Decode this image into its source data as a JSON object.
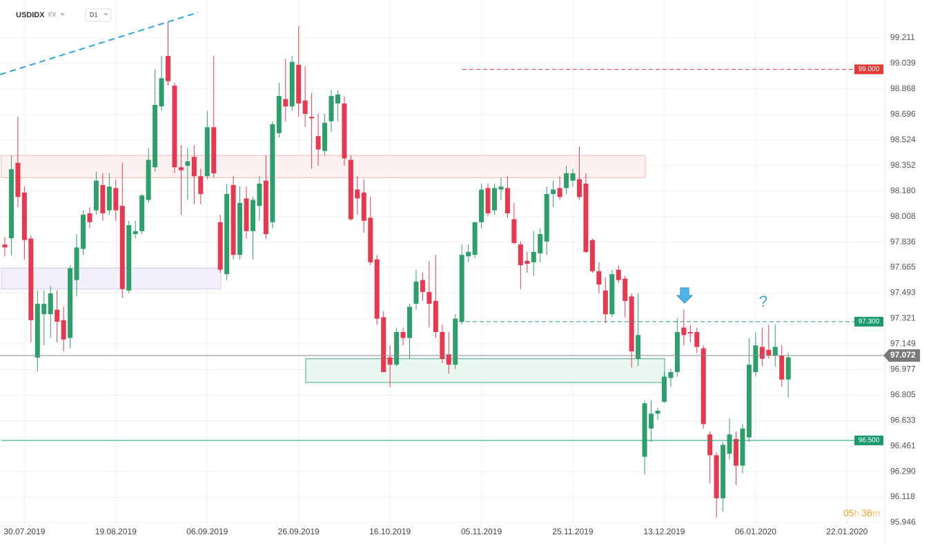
{
  "chart_data": {
    "type": "candlestick",
    "symbol": "USDIDX",
    "market": "FX",
    "interval": "D1",
    "countdown": [
      "05",
      "h",
      "36",
      "m"
    ],
    "annotation": "?",
    "up_color": "#2e9e6b",
    "down_color": "#e8384f",
    "grid": true,
    "categories": [
      null,
      null,
      null,
      "30.07.2019",
      null,
      null,
      null,
      null,
      null,
      null,
      null,
      null,
      null,
      null,
      null,
      null,
      null,
      "19.08.2019",
      null,
      null,
      null,
      null,
      null,
      null,
      null,
      null,
      null,
      null,
      null,
      null,
      null,
      "06.09.2019",
      null,
      null,
      null,
      null,
      null,
      null,
      null,
      null,
      null,
      null,
      null,
      null,
      null,
      "26.09.2019",
      null,
      null,
      null,
      null,
      null,
      null,
      null,
      null,
      null,
      null,
      null,
      null,
      null,
      "16.10.2019",
      null,
      null,
      null,
      null,
      null,
      null,
      null,
      null,
      null,
      null,
      null,
      null,
      null,
      "05.11.2019",
      null,
      null,
      null,
      null,
      null,
      null,
      null,
      null,
      null,
      null,
      null,
      null,
      null,
      "25.11.2019",
      null,
      null,
      null,
      null,
      null,
      null,
      null,
      null,
      null,
      null,
      null,
      null,
      null,
      "13.12.2019",
      null,
      null,
      null,
      null,
      null,
      null,
      null,
      null,
      null,
      null,
      null,
      null,
      null,
      "06.01.2020",
      null,
      null,
      null,
      null,
      null,
      null,
      null,
      null,
      null,
      null,
      null,
      null,
      null,
      "22.01.2020",
      null,
      null,
      null,
      null,
      null
    ],
    "open": [
      97.82,
      97.862,
      98.37,
      98.17,
      97.86,
      97.058,
      97.35,
      97.35,
      97.38,
      97.31,
      97.19,
      97.58,
      97.79,
      98.03,
      98.05,
      98.22,
      98.05,
      98.2,
      98.08,
      97.51,
      97.89,
      97.91,
      98.12,
      98.34,
      98.75,
      99.09,
      98.89,
      98.34,
      98.35,
      98.41,
      98.28,
      98.28,
      98.61,
      97.97,
      97.62,
      98.22,
      97.75,
      98.13,
      97.91,
      98.08,
      98.25,
      97.97,
      98.57,
      98.8,
      98.75,
      99.03,
      98.79,
      98.68,
      98.55,
      98.45,
      98.65,
      98.77,
      98.77,
      98.39,
      98.19,
      98.17,
      98.0,
      97.72,
      97.33,
      97.06,
      97.01,
      97.23,
      97.19,
      97.42,
      97.58,
      97.5,
      97.44,
      97.23,
      97.08,
      97.01,
      97.3,
      97.74,
      97.75,
      97.97,
      98.2,
      98.05,
      98.19,
      98.2,
      97.99,
      97.82,
      97.71,
      97.7,
      97.76,
      97.84,
      98.16,
      98.2,
      98.2,
      98.25,
      98.26,
      98.23,
      97.85,
      97.64,
      97.51,
      97.35,
      97.65,
      97.59,
      97.47,
      97.05,
      96.39,
      96.58,
      96.68,
      96.76,
      96.92,
      96.96,
      97.26,
      97.23,
      97.23,
      97.12,
      96.54,
      96.4,
      96.11,
      96.41,
      96.51,
      96.33,
      96.52,
      96.96,
      97.13,
      97.11,
      97.07,
      97.07,
      96.91,
      null,
      null,
      null,
      null,
      null,
      null,
      null,
      null,
      null,
      null,
      null,
      null,
      null,
      null
    ],
    "high": [
      97.87,
      98.42,
      98.68,
      98.21,
      97.88,
      97.51,
      97.51,
      97.54,
      97.51,
      97.4,
      97.68,
      97.89,
      98.05,
      98.07,
      98.31,
      98.3,
      98.3,
      98.26,
      98.37,
      97.98,
      97.98,
      98.16,
      98.47,
      99.0,
      99.09,
      99.32,
      98.91,
      98.49,
      98.47,
      98.49,
      98.33,
      98.72,
      99.09,
      98.02,
      98.23,
      98.28,
      98.21,
      98.21,
      98.14,
      98.28,
      98.42,
      98.65,
      98.91,
      99.07,
      99.09,
      99.29,
      99.02,
      98.84,
      98.7,
      98.7,
      98.86,
      98.86,
      98.82,
      98.42,
      98.28,
      98.26,
      98.14,
      97.75,
      97.37,
      97.14,
      97.26,
      97.26,
      97.42,
      97.65,
      97.63,
      97.71,
      97.75,
      97.28,
      97.23,
      97.35,
      97.82,
      97.82,
      97.97,
      98.23,
      98.23,
      98.23,
      98.27,
      98.28,
      98.1,
      97.84,
      97.77,
      97.91,
      97.93,
      98.21,
      98.25,
      98.28,
      98.35,
      98.33,
      98.48,
      98.3,
      97.86,
      97.7,
      97.6,
      97.65,
      97.68,
      97.61,
      97.49,
      97.49,
      96.77,
      96.77,
      96.72,
      96.96,
      96.98,
      97.32,
      97.38,
      97.28,
      97.26,
      97.14,
      96.56,
      96.42,
      96.49,
      96.65,
      96.56,
      96.61,
      97.19,
      97.23,
      97.26,
      97.28,
      97.28,
      97.14,
      97.09,
      null,
      null,
      null,
      null,
      null,
      null,
      null,
      null,
      null,
      null,
      null,
      null,
      null,
      null
    ],
    "low": [
      97.74,
      97.746,
      98.07,
      97.72,
      97.16,
      96.965,
      97.14,
      97.19,
      97.16,
      97.1,
      97.12,
      97.47,
      97.75,
      97.93,
      98.02,
      97.98,
      98.02,
      97.98,
      97.46,
      97.49,
      97.86,
      97.89,
      98.1,
      98.31,
      98.72,
      98.89,
      98.3,
      98.02,
      98.12,
      98.09,
      98.09,
      98.26,
      98.27,
      97.63,
      97.58,
      97.72,
      97.72,
      97.86,
      97.72,
      97.98,
      97.86,
      97.93,
      98.54,
      98.65,
      98.72,
      98.68,
      98.61,
      98.33,
      98.35,
      98.42,
      98.58,
      98.65,
      98.35,
      97.98,
      98.02,
      97.9,
      97.68,
      97.28,
      96.96,
      96.86,
      97.0,
      97.14,
      97.05,
      97.38,
      97.44,
      97.26,
      97.19,
      97.02,
      96.95,
      96.98,
      97.28,
      97.7,
      97.73,
      97.93,
      98.01,
      98.02,
      98.12,
      98.0,
      97.82,
      97.52,
      97.63,
      97.61,
      97.7,
      97.75,
      98.07,
      98.12,
      98.16,
      98.21,
      98.12,
      97.76,
      97.63,
      97.49,
      97.29,
      97.33,
      97.56,
      97.33,
      96.99,
      97.0,
      96.27,
      96.49,
      96.64,
      96.75,
      96.86,
      96.93,
      97.14,
      97.16,
      97.09,
      96.58,
      96.21,
      95.98,
      96.02,
      96.37,
      96.2,
      96.28,
      96.49,
      96.93,
      97.0,
      97.05,
      97.0,
      96.86,
      96.79,
      null,
      null,
      null,
      null,
      null,
      null,
      null,
      null,
      null,
      null,
      null,
      null,
      null,
      null
    ],
    "close": [
      97.8,
      98.327,
      98.14,
      97.85,
      97.31,
      97.42,
      97.42,
      97.49,
      97.3,
      97.18,
      97.66,
      97.8,
      98.02,
      97.97,
      98.25,
      98.03,
      98.21,
      98.05,
      97.52,
      97.95,
      97.91,
      98.15,
      98.39,
      98.76,
      98.94,
      98.92,
      98.34,
      98.32,
      98.38,
      98.28,
      98.16,
      98.61,
      98.3,
      97.65,
      98.16,
      97.75,
      98.1,
      97.91,
      98.12,
      98.23,
      97.89,
      98.63,
      98.82,
      98.75,
      99.05,
      98.77,
      98.7,
      98.67,
      98.46,
      98.64,
      98.82,
      98.83,
      98.4,
      97.99,
      98.13,
      97.98,
      97.7,
      97.32,
      96.96,
      97.01,
      97.23,
      97.19,
      97.4,
      97.57,
      97.5,
      97.42,
      97.23,
      97.05,
      97.01,
      97.32,
      97.75,
      97.77,
      97.97,
      98.19,
      98.03,
      98.2,
      98.21,
      98.03,
      97.83,
      97.68,
      97.69,
      97.77,
      97.89,
      98.16,
      98.19,
      98.14,
      98.3,
      98.3,
      98.14,
      97.77,
      97.64,
      97.55,
      97.35,
      97.62,
      97.58,
      97.44,
      97.1,
      97.21,
      96.75,
      96.68,
      96.7,
      96.93,
      96.96,
      97.23,
      97.21,
      97.22,
      97.13,
      96.61,
      96.4,
      96.11,
      96.47,
      96.54,
      96.33,
      96.58,
      97.01,
      97.14,
      97.05,
      97.07,
      97.13,
      96.91,
      97.06,
      null,
      null,
      null,
      null,
      null,
      null,
      null,
      null,
      null,
      null,
      null,
      null,
      null,
      null
    ],
    "ylim": [
      95.83,
      99.467
    ],
    "yticks": [
      99.211,
      99.039,
      98.868,
      98.696,
      98.524,
      98.352,
      {
        "value": 98.18,
        "label": "98.180"
      },
      98.008,
      97.836,
      97.665,
      97.493,
      97.321,
      97.149,
      96.977,
      96.805,
      96.633,
      96.461,
      {
        "value": 96.29,
        "label": "96.290"
      },
      96.118,
      95.946
    ],
    "zones": [
      {
        "top": 98.42,
        "bottom": 98.27,
        "color": "#fdeeee",
        "border": "#f2b8b8"
      },
      {
        "top": 97.66,
        "bottom": 97.52,
        "color": "#f1ecfb",
        "border": "#d8cdef"
      },
      {
        "top": 97.05,
        "bottom": 96.89,
        "color": "#e6f6ef",
        "border": "#3fae86"
      }
    ],
    "levels": [
      {
        "value": 99,
        "label": "99.000",
        "color": "#e53935",
        "style": "dashed"
      },
      {
        "value": 97.3,
        "label": "97.300",
        "color": "#1a9a70",
        "style": "dashed"
      },
      {
        "value": 96.5,
        "label": "96.500",
        "color": "#1a9a70",
        "style": "solid"
      }
    ],
    "last_price": 97.072
  }
}
